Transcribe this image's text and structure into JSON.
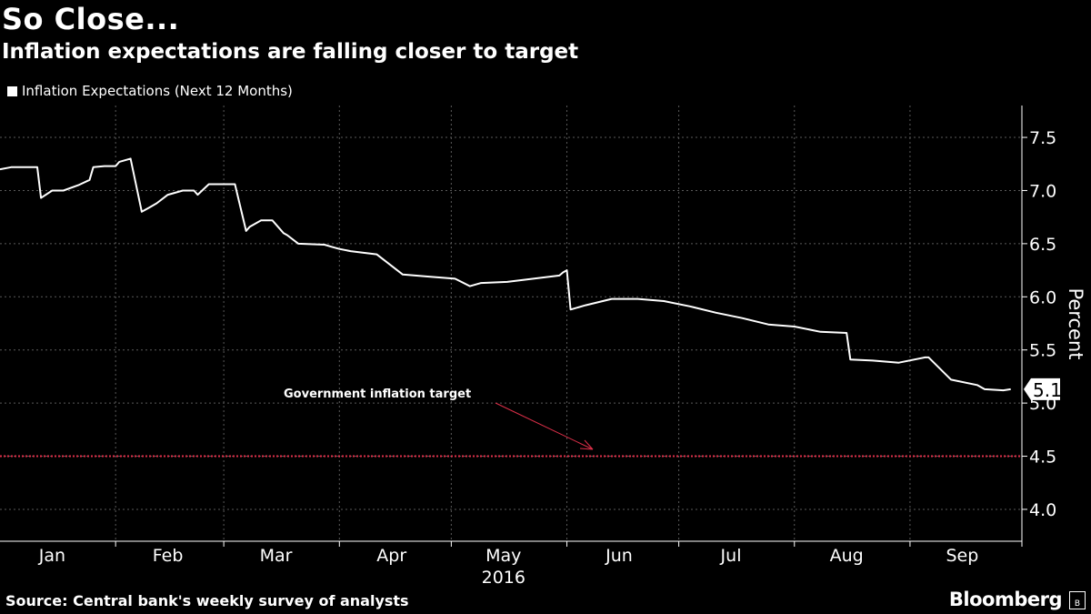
{
  "header": {
    "title": "So Close...",
    "subtitle": "Inflation expectations are falling closer to target"
  },
  "legend": {
    "label": "Inflation Expectations (Next 12 Months)"
  },
  "footer": {
    "source": "Source: Central bank's weekly survey of analysts",
    "brand": "Bloomberg",
    "brand_icon": "B"
  },
  "annotation": {
    "text": "Government inflation target"
  },
  "last_value_label": "5.1",
  "colors": {
    "background": "#000000",
    "line": "#ffffff",
    "target": "#e0304a",
    "grid": "#5a5a5a"
  },
  "chart_data": {
    "type": "line",
    "title": "So Close...",
    "subtitle": "Inflation expectations are falling closer to target",
    "ylabel": "Percent",
    "xlabel": "",
    "ylim": [
      3.7,
      7.8
    ],
    "yticks": [
      4.0,
      4.5,
      5.0,
      5.5,
      6.0,
      6.5,
      7.0,
      7.5
    ],
    "ytick_labels": [
      "4.0",
      "4.5",
      "5.0",
      "5.5",
      "6.0",
      "6.5",
      "7.0",
      "7.5"
    ],
    "xlim": [
      "2016-01-01",
      "2016-10-01"
    ],
    "month_ticks": [
      {
        "label": "Jan",
        "date": "2016-01-15"
      },
      {
        "label": "Feb",
        "date": "2016-02-15"
      },
      {
        "label": "Mar",
        "date": "2016-03-15"
      },
      {
        "label": "Apr",
        "date": "2016-04-15"
      },
      {
        "label": "May",
        "date": "2016-05-15"
      },
      {
        "label": "Jun",
        "date": "2016-06-15"
      },
      {
        "label": "Jul",
        "date": "2016-07-15"
      },
      {
        "label": "Aug",
        "date": "2016-08-15"
      },
      {
        "label": "Sep",
        "date": "2016-09-15"
      }
    ],
    "month_boundaries": [
      "2016-02-01",
      "2016-03-01",
      "2016-04-01",
      "2016-05-01",
      "2016-06-01",
      "2016-07-01",
      "2016-08-01",
      "2016-09-01",
      "2016-10-01"
    ],
    "year_label": "2016",
    "grid": true,
    "legend_position": "top-left",
    "target": {
      "value": 4.5,
      "label": "Government inflation target"
    },
    "series": [
      {
        "name": "Inflation Expectations (Next 12 Months)",
        "x": [
          "2016-01-01",
          "2016-01-04",
          "2016-01-08",
          "2016-01-11",
          "2016-01-12",
          "2016-01-15",
          "2016-01-18",
          "2016-01-22",
          "2016-01-25",
          "2016-01-26",
          "2016-01-29",
          "2016-02-01",
          "2016-02-02",
          "2016-02-05",
          "2016-02-08",
          "2016-02-10",
          "2016-02-12",
          "2016-02-15",
          "2016-02-16",
          "2016-02-19",
          "2016-02-22",
          "2016-02-23",
          "2016-02-26",
          "2016-03-01",
          "2016-03-04",
          "2016-03-07",
          "2016-03-08",
          "2016-03-11",
          "2016-03-14",
          "2016-03-17",
          "2016-03-18",
          "2016-03-21",
          "2016-03-28",
          "2016-03-30",
          "2016-04-01",
          "2016-04-04",
          "2016-04-11",
          "2016-04-18",
          "2016-04-25",
          "2016-05-02",
          "2016-05-06",
          "2016-05-09",
          "2016-05-16",
          "2016-05-23",
          "2016-05-30",
          "2016-05-31",
          "2016-06-01",
          "2016-06-02",
          "2016-06-06",
          "2016-06-13",
          "2016-06-20",
          "2016-06-27",
          "2016-07-04",
          "2016-07-11",
          "2016-07-18",
          "2016-07-25",
          "2016-08-01",
          "2016-08-08",
          "2016-08-15",
          "2016-08-16",
          "2016-08-22",
          "2016-08-29",
          "2016-09-05",
          "2016-09-06",
          "2016-09-12",
          "2016-09-19",
          "2016-09-21",
          "2016-09-26",
          "2016-09-28"
        ],
        "y": [
          7.2,
          7.22,
          7.22,
          7.22,
          6.93,
          7.0,
          7.0,
          7.05,
          7.1,
          7.22,
          7.23,
          7.23,
          7.27,
          7.3,
          6.8,
          6.84,
          6.88,
          6.96,
          6.97,
          7.0,
          7.0,
          6.96,
          7.06,
          7.06,
          7.06,
          6.62,
          6.66,
          6.72,
          6.72,
          6.6,
          6.58,
          6.5,
          6.49,
          6.47,
          6.45,
          6.43,
          6.4,
          6.21,
          6.19,
          6.17,
          6.1,
          6.13,
          6.14,
          6.17,
          6.2,
          6.23,
          6.25,
          5.88,
          5.92,
          5.98,
          5.98,
          5.96,
          5.91,
          5.85,
          5.8,
          5.74,
          5.72,
          5.67,
          5.66,
          5.41,
          5.4,
          5.38,
          5.43,
          5.43,
          5.22,
          5.17,
          5.13,
          5.12,
          5.13
        ]
      }
    ]
  }
}
